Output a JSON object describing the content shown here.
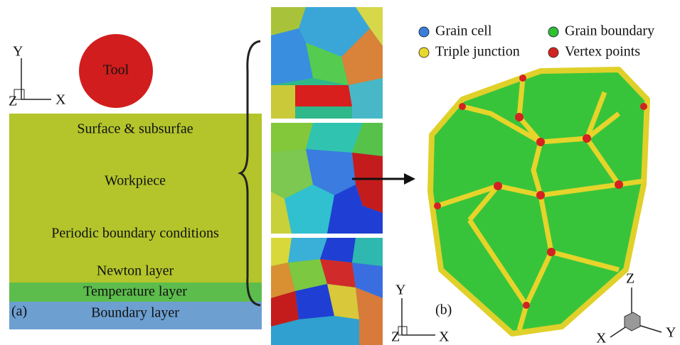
{
  "panel_a": {
    "axes": {
      "y": "Y",
      "z": "Z",
      "x": "X"
    },
    "tool": "Tool",
    "regions": {
      "surface": "Surface & subsurfae",
      "workpiece": "Workpiece",
      "periodic": "Periodic boundary conditions",
      "newton": "Newton layer",
      "temperature": "Temperature layer",
      "boundary": "Boundary layer"
    },
    "label": "(a)"
  },
  "panel_b": {
    "legend": [
      "Grain cell",
      "Grain boundary",
      "Triple junction",
      "Vertex points"
    ],
    "axes": {
      "y": "Y",
      "z": "Z",
      "x": "X"
    },
    "label": "(b)",
    "cube_axes": {
      "z": "Z",
      "x": "X",
      "y": "Y"
    }
  }
}
